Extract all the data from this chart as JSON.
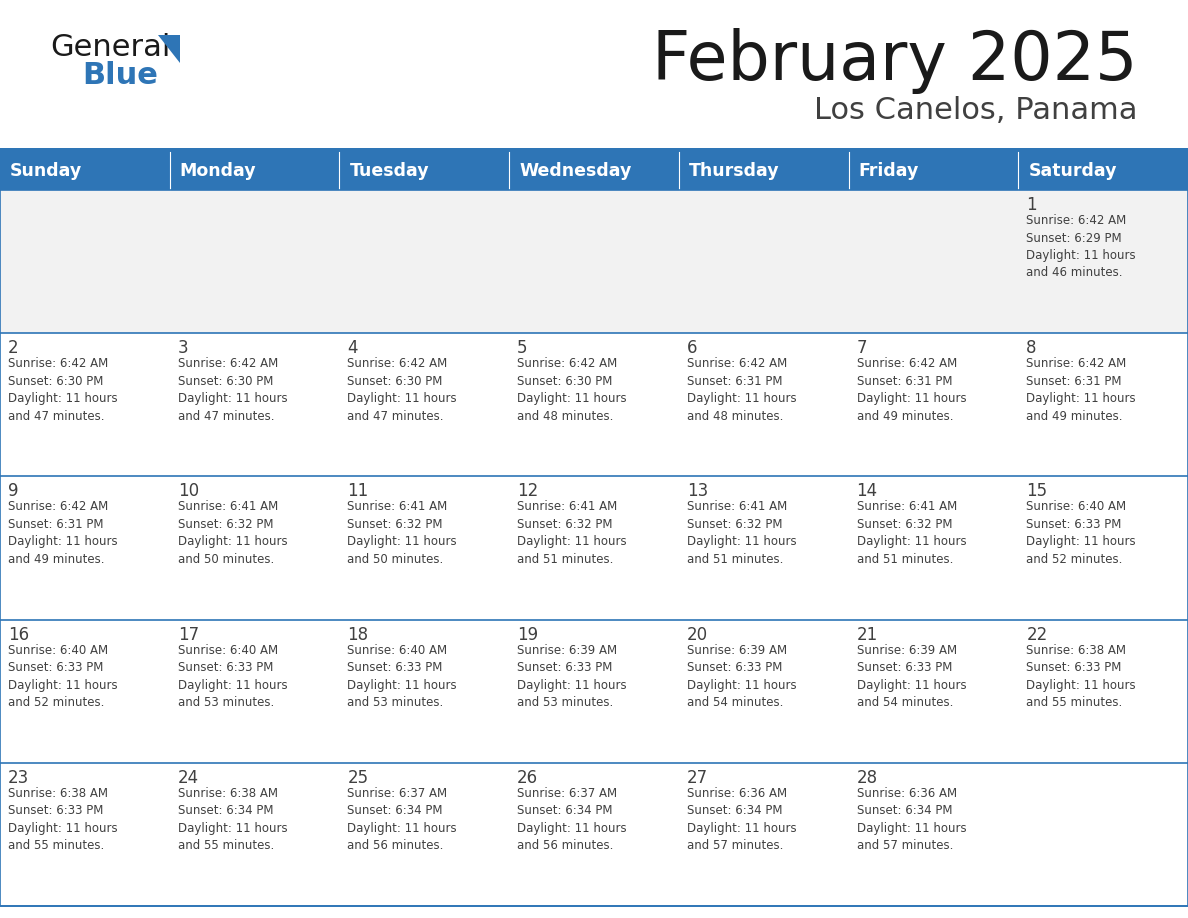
{
  "title": "February 2025",
  "subtitle": "Los Canelos, Panama",
  "days_of_week": [
    "Sunday",
    "Monday",
    "Tuesday",
    "Wednesday",
    "Thursday",
    "Friday",
    "Saturday"
  ],
  "header_bg": "#2E75B6",
  "header_text": "#FFFFFF",
  "cell_bg_white": "#FFFFFF",
  "cell_bg_gray": "#F2F2F2",
  "border_color": "#2E75B6",
  "text_color": "#404040",
  "day_num_color": "#404040",
  "title_color": "#1a1a1a",
  "subtitle_color": "#404040",
  "logo_text_color": "#1a1a1a",
  "logo_blue_color": "#2E75B6",
  "calendar": [
    [
      {
        "day": null,
        "info": ""
      },
      {
        "day": null,
        "info": ""
      },
      {
        "day": null,
        "info": ""
      },
      {
        "day": null,
        "info": ""
      },
      {
        "day": null,
        "info": ""
      },
      {
        "day": null,
        "info": ""
      },
      {
        "day": 1,
        "info": "Sunrise: 6:42 AM\nSunset: 6:29 PM\nDaylight: 11 hours\nand 46 minutes."
      }
    ],
    [
      {
        "day": 2,
        "info": "Sunrise: 6:42 AM\nSunset: 6:30 PM\nDaylight: 11 hours\nand 47 minutes."
      },
      {
        "day": 3,
        "info": "Sunrise: 6:42 AM\nSunset: 6:30 PM\nDaylight: 11 hours\nand 47 minutes."
      },
      {
        "day": 4,
        "info": "Sunrise: 6:42 AM\nSunset: 6:30 PM\nDaylight: 11 hours\nand 47 minutes."
      },
      {
        "day": 5,
        "info": "Sunrise: 6:42 AM\nSunset: 6:30 PM\nDaylight: 11 hours\nand 48 minutes."
      },
      {
        "day": 6,
        "info": "Sunrise: 6:42 AM\nSunset: 6:31 PM\nDaylight: 11 hours\nand 48 minutes."
      },
      {
        "day": 7,
        "info": "Sunrise: 6:42 AM\nSunset: 6:31 PM\nDaylight: 11 hours\nand 49 minutes."
      },
      {
        "day": 8,
        "info": "Sunrise: 6:42 AM\nSunset: 6:31 PM\nDaylight: 11 hours\nand 49 minutes."
      }
    ],
    [
      {
        "day": 9,
        "info": "Sunrise: 6:42 AM\nSunset: 6:31 PM\nDaylight: 11 hours\nand 49 minutes."
      },
      {
        "day": 10,
        "info": "Sunrise: 6:41 AM\nSunset: 6:32 PM\nDaylight: 11 hours\nand 50 minutes."
      },
      {
        "day": 11,
        "info": "Sunrise: 6:41 AM\nSunset: 6:32 PM\nDaylight: 11 hours\nand 50 minutes."
      },
      {
        "day": 12,
        "info": "Sunrise: 6:41 AM\nSunset: 6:32 PM\nDaylight: 11 hours\nand 51 minutes."
      },
      {
        "day": 13,
        "info": "Sunrise: 6:41 AM\nSunset: 6:32 PM\nDaylight: 11 hours\nand 51 minutes."
      },
      {
        "day": 14,
        "info": "Sunrise: 6:41 AM\nSunset: 6:32 PM\nDaylight: 11 hours\nand 51 minutes."
      },
      {
        "day": 15,
        "info": "Sunrise: 6:40 AM\nSunset: 6:33 PM\nDaylight: 11 hours\nand 52 minutes."
      }
    ],
    [
      {
        "day": 16,
        "info": "Sunrise: 6:40 AM\nSunset: 6:33 PM\nDaylight: 11 hours\nand 52 minutes."
      },
      {
        "day": 17,
        "info": "Sunrise: 6:40 AM\nSunset: 6:33 PM\nDaylight: 11 hours\nand 53 minutes."
      },
      {
        "day": 18,
        "info": "Sunrise: 6:40 AM\nSunset: 6:33 PM\nDaylight: 11 hours\nand 53 minutes."
      },
      {
        "day": 19,
        "info": "Sunrise: 6:39 AM\nSunset: 6:33 PM\nDaylight: 11 hours\nand 53 minutes."
      },
      {
        "day": 20,
        "info": "Sunrise: 6:39 AM\nSunset: 6:33 PM\nDaylight: 11 hours\nand 54 minutes."
      },
      {
        "day": 21,
        "info": "Sunrise: 6:39 AM\nSunset: 6:33 PM\nDaylight: 11 hours\nand 54 minutes."
      },
      {
        "day": 22,
        "info": "Sunrise: 6:38 AM\nSunset: 6:33 PM\nDaylight: 11 hours\nand 55 minutes."
      }
    ],
    [
      {
        "day": 23,
        "info": "Sunrise: 6:38 AM\nSunset: 6:33 PM\nDaylight: 11 hours\nand 55 minutes."
      },
      {
        "day": 24,
        "info": "Sunrise: 6:38 AM\nSunset: 6:34 PM\nDaylight: 11 hours\nand 55 minutes."
      },
      {
        "day": 25,
        "info": "Sunrise: 6:37 AM\nSunset: 6:34 PM\nDaylight: 11 hours\nand 56 minutes."
      },
      {
        "day": 26,
        "info": "Sunrise: 6:37 AM\nSunset: 6:34 PM\nDaylight: 11 hours\nand 56 minutes."
      },
      {
        "day": 27,
        "info": "Sunrise: 6:36 AM\nSunset: 6:34 PM\nDaylight: 11 hours\nand 57 minutes."
      },
      {
        "day": 28,
        "info": "Sunrise: 6:36 AM\nSunset: 6:34 PM\nDaylight: 11 hours\nand 57 minutes."
      },
      {
        "day": null,
        "info": ""
      }
    ]
  ]
}
